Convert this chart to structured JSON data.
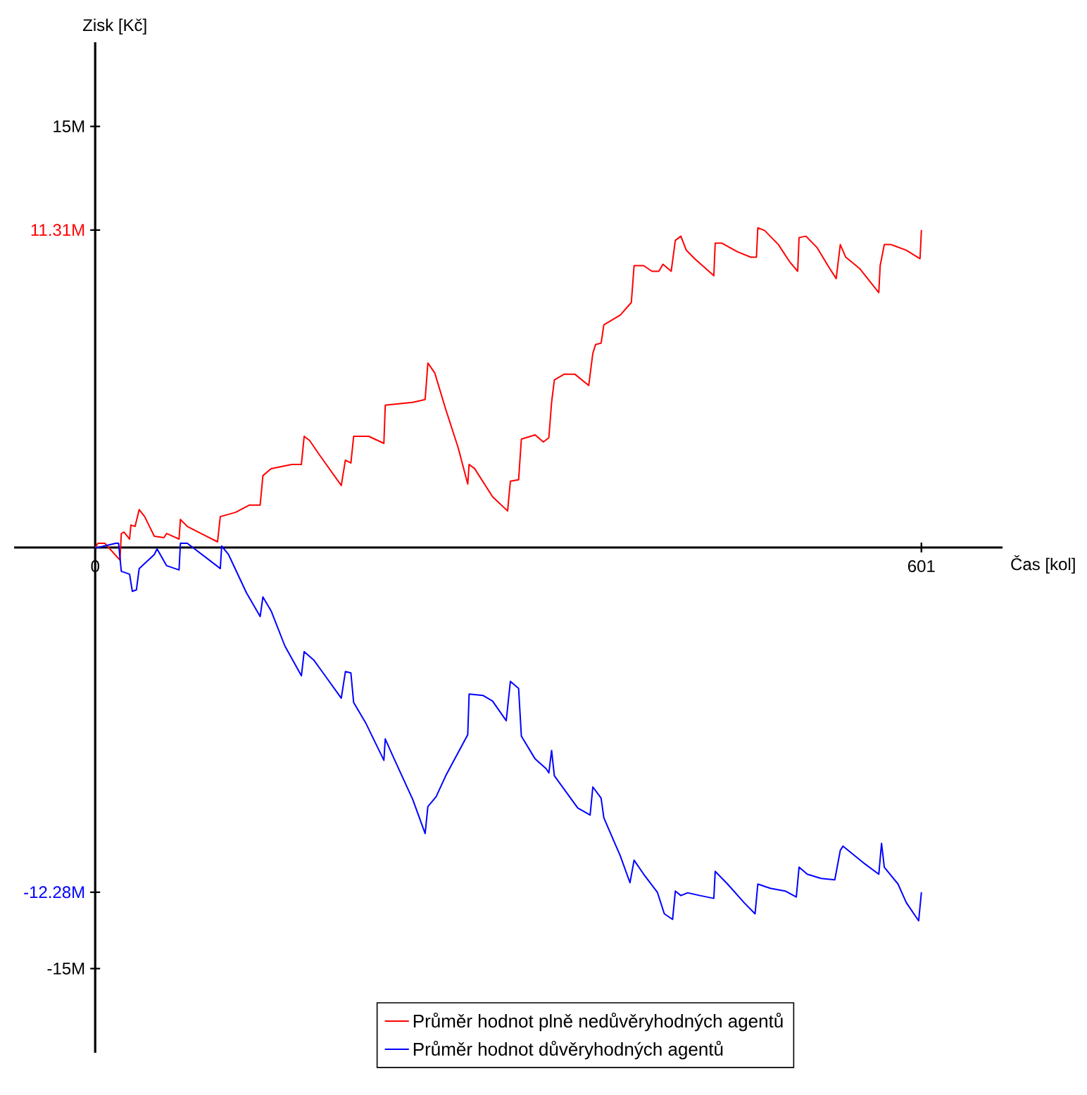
{
  "chart_data": {
    "type": "line",
    "xlabel": "Čas [kol]",
    "ylabel": "Zisk [Kč]",
    "xlim": [
      -59,
      660
    ],
    "ylim": [
      -18,
      18
    ],
    "xticks": [
      0,
      601
    ],
    "yticks": [
      {
        "value": 15,
        "label": "15M"
      },
      {
        "value": 11.31,
        "label": "11.31M"
      },
      {
        "value": -12.28,
        "label": "-12.28M"
      },
      {
        "value": -15,
        "label": "-15M"
      }
    ],
    "legend": "bottom",
    "series": [
      {
        "name": "Průměr hodnot plně nedůvěryhodných agentů",
        "color": "#ff0000",
        "x": [
          0,
          2,
          7,
          18,
          19,
          21,
          25,
          26,
          29,
          32,
          36,
          43,
          50,
          52,
          61,
          62,
          67,
          89,
          91,
          102,
          112,
          120,
          122,
          128,
          143,
          150,
          152,
          156,
          163,
          179,
          182,
          186,
          188,
          199,
          210,
          211,
          231,
          240,
          242,
          247,
          255,
          264,
          271,
          272,
          276,
          289,
          300,
          302,
          308,
          310,
          320,
          326,
          330,
          332,
          334,
          341,
          349,
          359,
          362,
          364,
          368,
          370,
          382,
          390,
          392,
          399,
          405,
          410,
          413,
          419,
          422,
          426,
          430,
          436,
          450,
          451,
          456,
          467,
          477,
          481,
          482,
          487,
          497,
          505,
          511,
          512,
          517,
          525,
          533,
          539,
          542,
          546,
          556,
          570,
          571,
          574,
          579,
          590,
          600,
          601
        ],
        "values": [
          0,
          0.15,
          0.15,
          -0.45,
          0.5,
          0.55,
          0.3,
          0.8,
          0.75,
          1.35,
          1.1,
          0.4,
          0.35,
          0.5,
          0.3,
          1.0,
          0.75,
          0.2,
          1.1,
          1.25,
          1.51,
          1.51,
          2.56,
          2.81,
          2.96,
          2.96,
          3.96,
          3.81,
          3.31,
          2.21,
          3.11,
          3.01,
          3.96,
          3.96,
          3.71,
          5.07,
          5.17,
          5.27,
          6.57,
          6.22,
          4.92,
          3.56,
          2.26,
          2.96,
          2.81,
          1.81,
          1.3,
          2.36,
          2.41,
          3.86,
          4.01,
          3.76,
          3.91,
          5.17,
          5.97,
          6.17,
          6.17,
          5.77,
          6.92,
          7.23,
          7.28,
          7.93,
          8.28,
          8.73,
          10.04,
          10.04,
          9.84,
          9.84,
          10.09,
          9.84,
          10.94,
          11.09,
          10.59,
          10.29,
          9.68,
          10.84,
          10.84,
          10.54,
          10.34,
          10.34,
          11.39,
          11.29,
          10.79,
          10.19,
          9.84,
          11.04,
          11.09,
          10.69,
          10.04,
          9.58,
          10.79,
          10.34,
          9.94,
          9.08,
          10.04,
          10.79,
          10.79,
          10.59,
          10.29,
          11.31
        ]
      },
      {
        "name": "Průměr hodnot důvěryhodných agentů",
        "color": "#0000ff",
        "x": [
          0,
          2,
          15,
          17,
          19,
          25,
          27,
          30,
          32,
          43,
          45,
          52,
          61,
          62,
          67,
          91,
          92,
          97,
          110,
          120,
          122,
          128,
          138,
          150,
          152,
          159,
          168,
          179,
          182,
          186,
          188,
          197,
          210,
          211,
          217,
          231,
          240,
          242,
          248,
          255,
          271,
          272,
          282,
          289,
          299,
          302,
          308,
          310,
          320,
          328,
          330,
          332,
          334,
          351,
          360,
          362,
          368,
          370,
          382,
          389,
          392,
          399,
          409,
          414,
          420,
          422,
          426,
          431,
          440,
          450,
          451,
          460,
          472,
          480,
          482,
          491,
          502,
          510,
          512,
          518,
          528,
          538,
          542,
          544,
          559,
          570,
          572,
          574,
          584,
          590,
          599,
          601
        ],
        "values": [
          0,
          0,
          0.15,
          0.15,
          -0.85,
          -0.95,
          -1.56,
          -1.51,
          -0.75,
          -0.25,
          -0.05,
          -0.65,
          -0.8,
          0.15,
          0.15,
          -0.75,
          0.05,
          -0.25,
          -1.61,
          -2.46,
          -1.76,
          -2.26,
          -3.51,
          -4.57,
          -3.71,
          -4.01,
          -4.62,
          -5.37,
          -4.42,
          -4.47,
          -5.52,
          -6.27,
          -7.58,
          -6.82,
          -7.48,
          -8.98,
          -10.19,
          -9.23,
          -8.88,
          -8.13,
          -6.67,
          -5.22,
          -5.27,
          -5.47,
          -6.17,
          -4.77,
          -5.02,
          -6.72,
          -7.53,
          -7.88,
          -8.03,
          -7.23,
          -8.13,
          -9.28,
          -9.53,
          -8.53,
          -8.93,
          -9.63,
          -10.99,
          -11.94,
          -11.14,
          -11.64,
          -12.29,
          -13.05,
          -13.25,
          -12.24,
          -12.4,
          -12.3,
          -12.4,
          -12.5,
          -11.54,
          -11.99,
          -12.65,
          -13.05,
          -11.99,
          -12.14,
          -12.24,
          -12.45,
          -11.39,
          -11.64,
          -11.79,
          -11.84,
          -10.79,
          -10.64,
          -11.24,
          -11.64,
          -10.54,
          -11.39,
          -11.99,
          -12.65,
          -13.3,
          -12.28
        ]
      }
    ]
  }
}
